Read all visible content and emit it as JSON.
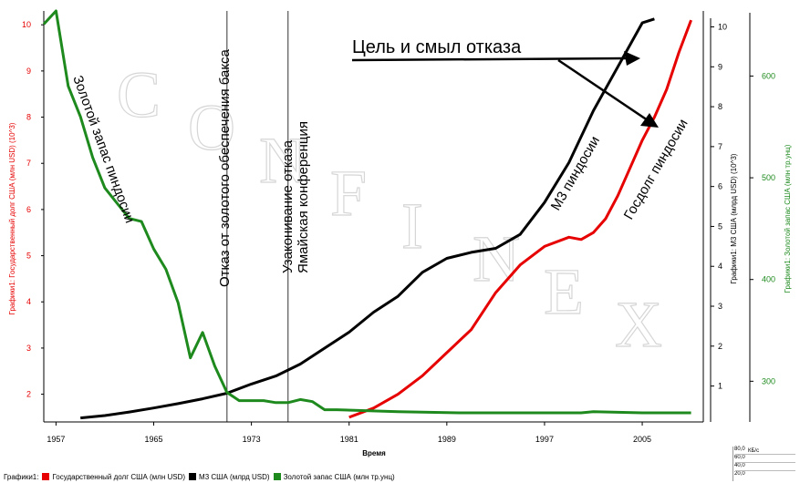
{
  "chart_data": {
    "type": "line",
    "xlabel": "Время",
    "x_ticks": [
      "1957",
      "1965",
      "1973",
      "1981",
      "1989",
      "1997",
      "2005"
    ],
    "xlim": [
      1956,
      2010
    ],
    "left_axis": {
      "label": "Графики1: Государственный долг США (млн USD) (10^3)",
      "color": "#e60000",
      "ticks": [
        2,
        3,
        4,
        5,
        6,
        7,
        8,
        9,
        10
      ],
      "range": [
        1.4,
        10.3
      ]
    },
    "right_axis_1": {
      "label": "Графики1: M3 США (млрд USD) (10^3)",
      "color": "#000000",
      "ticks": [
        1,
        2,
        3,
        4,
        5,
        6,
        7,
        8,
        9,
        10
      ],
      "range": [
        0.1,
        10.4
      ]
    },
    "right_axis_2": {
      "label": "Графики1: Золотой запас США (млн тр.унц)",
      "color": "#1e8a1e",
      "ticks": [
        300,
        400,
        500,
        600
      ],
      "range": [
        260,
        664
      ]
    },
    "series": [
      {
        "name": "Государственный долг США (млн USD)",
        "color": "#e60000",
        "axis": "left",
        "x": [
          1981,
          1983,
          1985,
          1987,
          1989,
          1991,
          1993,
          1995,
          1997,
          1999,
          2000,
          2001,
          2002,
          2003,
          2004,
          2005,
          2006,
          2007,
          2008,
          2009
        ],
        "y": [
          1.5,
          1.7,
          2.0,
          2.4,
          2.9,
          3.4,
          4.2,
          4.8,
          5.2,
          5.4,
          5.35,
          5.5,
          5.8,
          6.3,
          6.9,
          7.5,
          8.0,
          8.6,
          9.4,
          10.1
        ]
      },
      {
        "name": "M3 США (млрд USD)",
        "color": "#000000",
        "axis": "right_1",
        "x": [
          1959,
          1961,
          1963,
          1965,
          1967,
          1969,
          1971,
          1973,
          1975,
          1977,
          1979,
          1981,
          1983,
          1985,
          1987,
          1989,
          1991,
          1993,
          1995,
          1997,
          1999,
          2001,
          2003,
          2005,
          2006
        ],
        "y": [
          0.2,
          0.26,
          0.35,
          0.45,
          0.56,
          0.68,
          0.82,
          1.05,
          1.25,
          1.55,
          1.95,
          2.35,
          2.85,
          3.25,
          3.85,
          4.2,
          4.35,
          4.45,
          4.8,
          5.6,
          6.6,
          7.9,
          9.0,
          10.1,
          10.2
        ]
      },
      {
        "name": "Золотой запас США (млн тр.унц)",
        "color": "#1e8a1e",
        "axis": "right_2",
        "x": [
          1956,
          1957,
          1958,
          1959,
          1960,
          1961,
          1962,
          1963,
          1964,
          1965,
          1966,
          1967,
          1968,
          1969,
          1970,
          1971,
          1972,
          1973,
          1974,
          1975,
          1976,
          1977,
          1978,
          1979,
          1980,
          1985,
          1990,
          1995,
          2000,
          2001,
          2005,
          2009
        ],
        "y": [
          651,
          664,
          590,
          560,
          520,
          490,
          475,
          460,
          457,
          430,
          410,
          377,
          323,
          348,
          315,
          289,
          281,
          281,
          281,
          279,
          279,
          282,
          280,
          272,
          272,
          270,
          269,
          269,
          269,
          270,
          269,
          269
        ]
      }
    ],
    "annotations": {
      "title": "Цель и смыл отказа",
      "gold_label": "Золотой запас пиндосии",
      "dollar_label": "Отказ от золотого обеспечения бакса",
      "jamaica_line1": "Узаконивание отказа",
      "jamaica_line2": "Ямайская конференция",
      "m3_label": "M3 пиндосии",
      "debt_label": "Госдолг пиндосии",
      "event_years": [
        1971,
        1976
      ]
    },
    "watermark": [
      "C",
      "O",
      "N",
      "F",
      "I",
      "N",
      "E",
      "X"
    ],
    "legend_prefix": "Графики1:",
    "legend_items": [
      {
        "label": "Государственный долг США (млн USD)",
        "color": "#e60000"
      },
      {
        "label": "M3 США (млрд USD)",
        "color": "#000000"
      },
      {
        "label": "Золотой запас США (млн тр.унц)",
        "color": "#1e8a1e"
      }
    ],
    "mini_panel": {
      "unit": "КБ/с",
      "values": [
        "80,0",
        "60,0",
        "40,0",
        "20,0"
      ]
    }
  }
}
